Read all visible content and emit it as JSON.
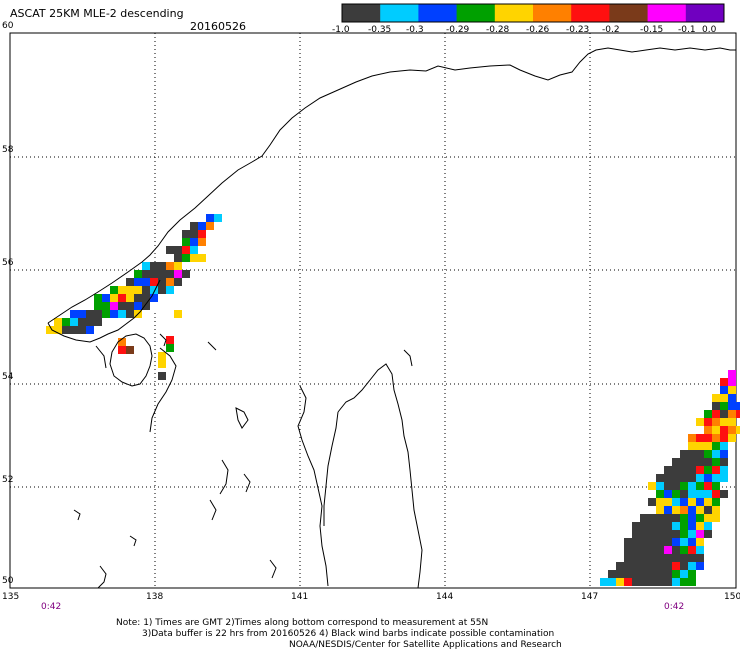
{
  "title": "ASCAT 25KM MLE-2 descending",
  "date": "20160526",
  "colorbar": {
    "colors": [
      "#3c3c3c",
      "#00ccff",
      "#0040ff",
      "#00a000",
      "#ffd400",
      "#ff8000",
      "#ff1010",
      "#7a3a1a",
      "#ff00ff",
      "#7000c0"
    ],
    "tick_labels": [
      "-1.0",
      "-0.35",
      "-0.3",
      "-0.29",
      "-0.28",
      "-0.26",
      "-0.23",
      "-0.2",
      "-0.15",
      "-0.1",
      "0.0"
    ]
  },
  "map": {
    "lon_labels": [
      "135",
      "138",
      "141",
      "144",
      "147",
      "150"
    ],
    "lat_labels": [
      "60",
      "58",
      "56",
      "54",
      "52",
      "50"
    ],
    "lon_range": [
      135,
      150
    ],
    "lat_range": [
      50,
      60
    ],
    "time_left": "0:42",
    "time_right": "0:42"
  },
  "notes": {
    "line1": "Note: 1) Times are GMT 2)Times along bottom correspond to measurement at 55N",
    "line2": "3)Data buffer is 22 hrs from 20160526 4) Black wind barbs indicate possible contamination",
    "line3": "NOAA/NESDIS/Center for Satellite Applications and Research"
  }
}
